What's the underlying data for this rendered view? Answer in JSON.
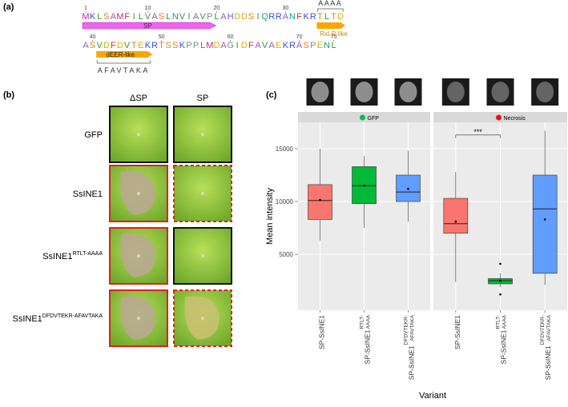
{
  "panel_a": {
    "label": "(a)",
    "line1": "MKLSAMFILVASLNVIAVPLAHDDSIQRRANFKRTLTD",
    "line1_numbers": [
      1,
      10,
      20,
      30
    ],
    "line2": "ASVDFDVTEKRTSSKPPLMDAGIDFAVAEKRASPENL",
    "line2_numbers": [
      40,
      50,
      60,
      70,
      75
    ],
    "sp_label": "SP",
    "rxlr_label": "RxLR-like",
    "rxlr_mutation": "AAAA",
    "deer_label": "dEER-like",
    "deer_mutation": "AFAVTAKA"
  },
  "panel_b": {
    "label": "(b)",
    "columns": [
      "ΔSP",
      "SP"
    ],
    "rows": [
      {
        "name": "GFP"
      },
      {
        "name": "SsINE1"
      },
      {
        "name": "SsINE1",
        "sup": "RTLT-AAAA"
      },
      {
        "name": "SsINE1",
        "sup": "DFDVTEKR-AFAVTAKA"
      }
    ]
  },
  "panel_c_label": "(c)",
  "chart_data": {
    "type": "box",
    "y_label": "Mean intensity",
    "x_label": "Variant",
    "ylim": [
      -300,
      17500
    ],
    "yticks": [
      5000,
      10000,
      15000
    ],
    "grid": true,
    "categories": [
      "SP-SsINE1",
      "SP-SsINE1",
      "SP-SsINE1"
    ],
    "category_sup": [
      null,
      "RTLT-AAAA",
      "DFDVTEKR-AFAVTAKA"
    ],
    "colors": [
      "#f8766d",
      "#00ba38",
      "#619cff"
    ],
    "series": [
      {
        "name": "GFP",
        "marker_color": "#00c040",
        "boxes": [
          {
            "whisker_low": 6300,
            "q1": 8300,
            "median": 10100,
            "q3": 11600,
            "whisker_high": 15000,
            "mean": 10150,
            "outliers": []
          },
          {
            "whisker_low": 7500,
            "q1": 9800,
            "median": 11500,
            "q3": 13300,
            "whisker_high": 14300,
            "mean": 11500,
            "outliers": []
          },
          {
            "whisker_low": 8100,
            "q1": 10000,
            "median": 10900,
            "q3": 12500,
            "whisker_high": 14800,
            "mean": 11200,
            "outliers": []
          }
        ]
      },
      {
        "name": "Necrosis",
        "marker_color": "#ee1111",
        "boxes": [
          {
            "whisker_low": 2400,
            "q1": 7000,
            "median": 7900,
            "q3": 10300,
            "whisker_high": 12800,
            "mean": 8100,
            "outliers": []
          },
          {
            "whisker_low": 1900,
            "q1": 2200,
            "median": 2500,
            "q3": 2700,
            "whisker_high": 3200,
            "mean": 2500,
            "outliers": [
              4100,
              1200
            ]
          },
          {
            "whisker_low": 2100,
            "q1": 3200,
            "median": 9300,
            "q3": 12500,
            "whisker_high": 16700,
            "mean": 8300,
            "outliers": []
          }
        ]
      }
    ],
    "annotations": [
      {
        "text": "***",
        "series": 1,
        "from": 0,
        "to": 1,
        "y": 16300
      }
    ]
  }
}
